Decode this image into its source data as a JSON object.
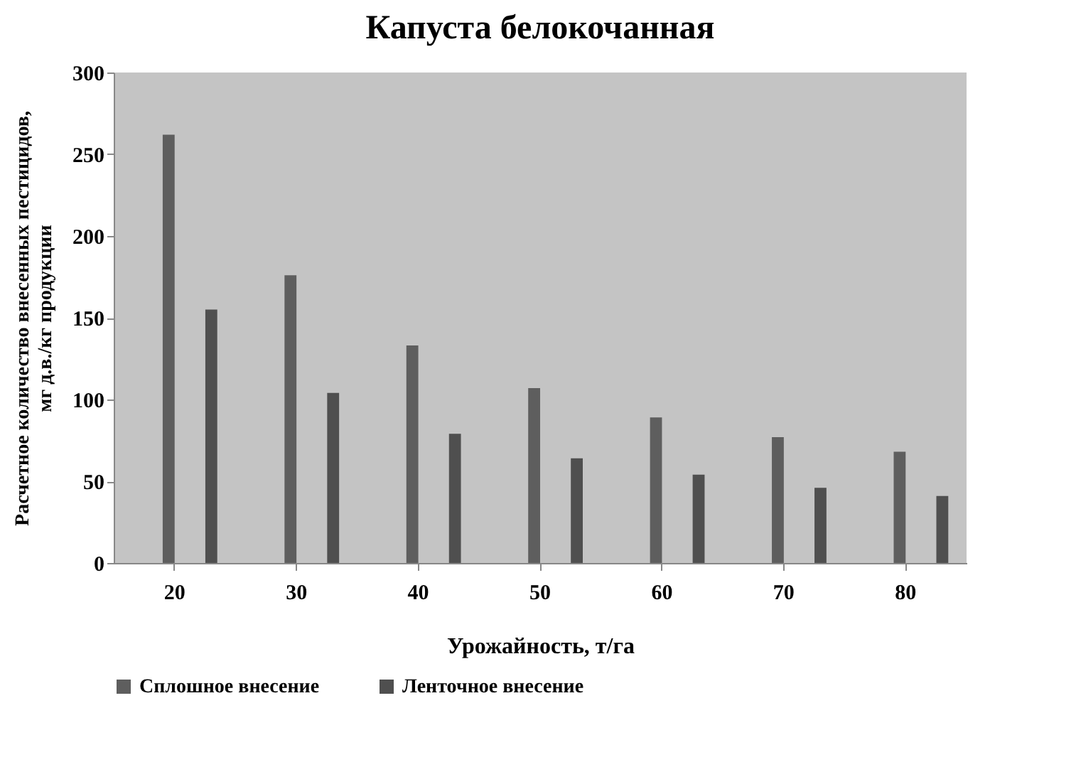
{
  "chart_data": {
    "type": "bar",
    "title": "Капуста белокочанная",
    "xlabel": "Урожайность,  т/га",
    "ylabel": "Расчетное количество внесенных пестицидов, мг д.в./кг продукции",
    "categories": [
      "20",
      "30",
      "40",
      "50",
      "60",
      "70",
      "80"
    ],
    "series": [
      {
        "name": "Сплошное внесение",
        "color": "#5e5e5e",
        "values": [
          262,
          176,
          133,
          107,
          89,
          77,
          68
        ]
      },
      {
        "name": "Ленточное внесение",
        "color": "#4f4f4f",
        "values": [
          155,
          104,
          79,
          64,
          54,
          46,
          41
        ]
      }
    ],
    "ylim": [
      0,
      300
    ],
    "yticks": [
      0,
      50,
      100,
      150,
      200,
      250,
      300
    ],
    "grid": false,
    "legend": "bottom"
  }
}
